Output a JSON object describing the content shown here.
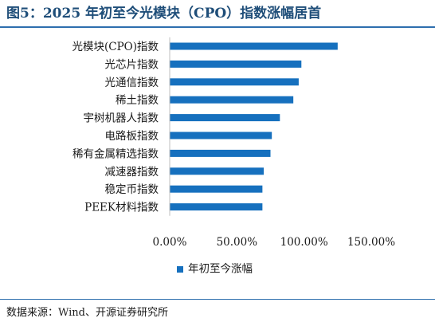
{
  "header": {
    "title": "图5：2025 年初至今光模块（CPO）指数涨幅居首"
  },
  "chart_data": {
    "type": "bar",
    "orientation": "horizontal",
    "categories": [
      "光模块(CPO)指数",
      "光芯片指数",
      "光通信指数",
      "稀土指数",
      "宇树机器人指数",
      "电路板指数",
      "稀有金属精选指数",
      "减速器指数",
      "稳定币指数",
      "PEEK材料指数"
    ],
    "series": [
      {
        "name": "年初至今涨幅",
        "values": [
          125,
          98,
          96,
          92,
          82,
          76,
          75,
          70,
          69,
          69
        ]
      }
    ],
    "xlim": [
      0,
      150
    ],
    "xticks": [
      "0.00%",
      "50.00%",
      "100.00%",
      "150.00%"
    ],
    "xtick_values": [
      0,
      50,
      100,
      150
    ],
    "grid": false,
    "legend": "bottom",
    "bar_color": "#1670be"
  },
  "footer": {
    "source": "数据来源：Wind、开源证券研究所"
  }
}
